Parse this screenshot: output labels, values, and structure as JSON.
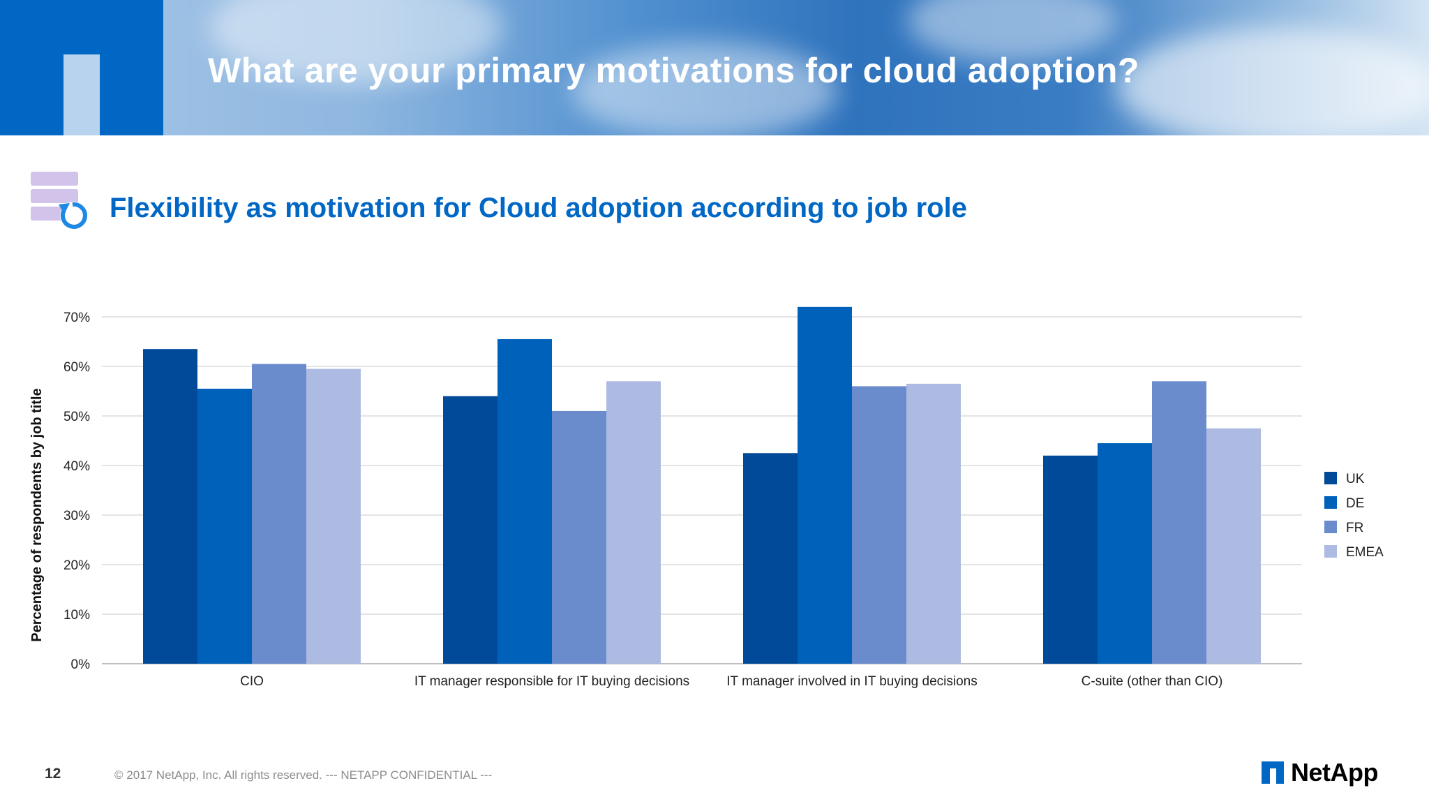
{
  "header": {
    "title": "What are your primary motivations for cloud adoption?"
  },
  "section": {
    "title": "Flexibility as motivation for Cloud adoption according to job role",
    "icon": "database-refresh-icon"
  },
  "colors": {
    "UK": "#004a99",
    "DE": "#0061bb",
    "FR": "#6a8ccc",
    "EMEA": "#adbbe2",
    "brand": "#0067c5"
  },
  "chart_data": {
    "type": "bar",
    "title": "",
    "xlabel": "",
    "ylabel": "Percentage of respondents by job title",
    "ylim": [
      0,
      70
    ],
    "yticks": [
      "0%",
      "10%",
      "20%",
      "30%",
      "40%",
      "50%",
      "60%",
      "70%"
    ],
    "categories": [
      "CIO",
      "IT manager responsible for IT buying decisions",
      "IT manager involved in IT buying decisions",
      "C-suite (other than CIO)"
    ],
    "series": [
      {
        "name": "UK",
        "values": [
          63.5,
          54,
          42.5,
          42
        ]
      },
      {
        "name": "DE",
        "values": [
          55.5,
          65.5,
          72,
          44.5
        ]
      },
      {
        "name": "FR",
        "values": [
          60.5,
          51,
          56,
          57
        ]
      },
      {
        "name": "EMEA",
        "values": [
          59.5,
          57,
          56.5,
          47.5
        ]
      }
    ],
    "legend": "right",
    "grid": true
  },
  "footer": {
    "page_number": "12",
    "copyright": "© 2017 NetApp, Inc. All rights reserved.  --- NETAPP CONFIDENTIAL ---",
    "logo_text": "NetApp"
  }
}
